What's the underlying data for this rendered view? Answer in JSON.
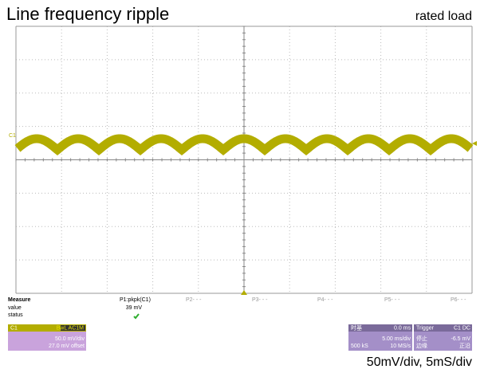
{
  "header": {
    "title": "Line frequency ripple",
    "note": "rated load"
  },
  "scope": {
    "channel_marker": "C1"
  },
  "measure": {
    "label": "Measure",
    "rows": [
      "value",
      "status"
    ],
    "params": [
      {
        "name": "P1:pkpk(C1)",
        "value": "39 mV"
      },
      {
        "name": "P2- - -"
      },
      {
        "name": "P3- - -"
      },
      {
        "name": "P4- - -"
      },
      {
        "name": "P5- - -"
      },
      {
        "name": "P6- - -"
      }
    ]
  },
  "channel": {
    "name": "C1",
    "flags": "BwL AC1M",
    "scale": "50.0 mV/div",
    "offset": "27.0 mV offset"
  },
  "timebase": {
    "label": "时基",
    "delay": "0.0 ms",
    "scale": "5.00 ms/div",
    "samples": "500 kS",
    "rate": "10 MS/s"
  },
  "trigger": {
    "label": "Trigger",
    "source": "C1 DC",
    "mode": "停止",
    "level": "-6.5 mV",
    "type": "边缘",
    "slope": "正沿"
  },
  "caption": "50mV/div, 5mS/div"
}
